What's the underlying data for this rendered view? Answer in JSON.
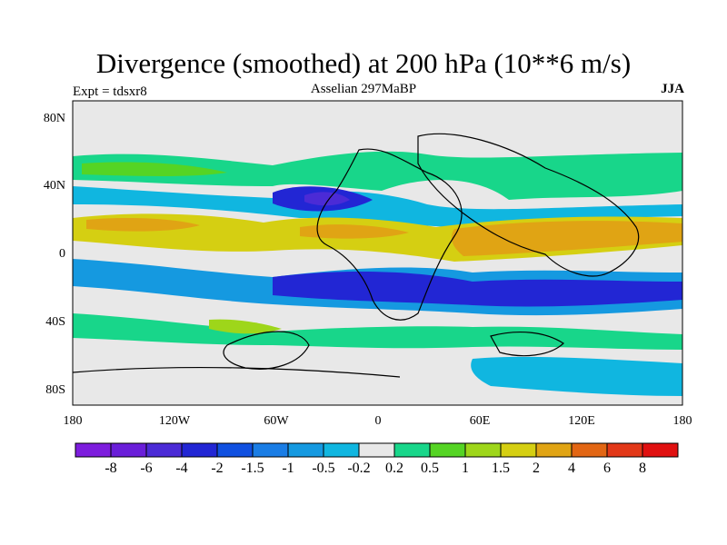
{
  "title": "Divergence (smoothed) at 200 hPa (10**6 m/s)",
  "subtitle": "Asselian 297MaBP",
  "left_label": "Expt = tdsxr8",
  "right_label": "JJA",
  "map": {
    "lat_ticks": [
      "80N",
      "40N",
      "0",
      "40S",
      "80S"
    ],
    "lon_ticks": [
      "180",
      "120W",
      "60W",
      "0",
      "60E",
      "120E",
      "180"
    ],
    "background_color": "#e8e8e8",
    "coastline_color": "#000000"
  },
  "colorbar": {
    "labels": [
      "-8",
      "-6",
      "-4",
      "-2",
      "-1.5",
      "-1",
      "-0.5",
      "-0.2",
      "0.2",
      "0.5",
      "1",
      "1.5",
      "2",
      "4",
      "6",
      "8"
    ],
    "colors": [
      "#7d1ddd",
      "#6a1ed9",
      "#4b2bd6",
      "#2226d4",
      "#1050e0",
      "#1a7de5",
      "#1599e0",
      "#10b6e0",
      "#e8e8e8",
      "#18d68a",
      "#55d424",
      "#9ed61a",
      "#d5cf12",
      "#e0a414",
      "#e26614",
      "#e23818",
      "#e01010"
    ]
  }
}
